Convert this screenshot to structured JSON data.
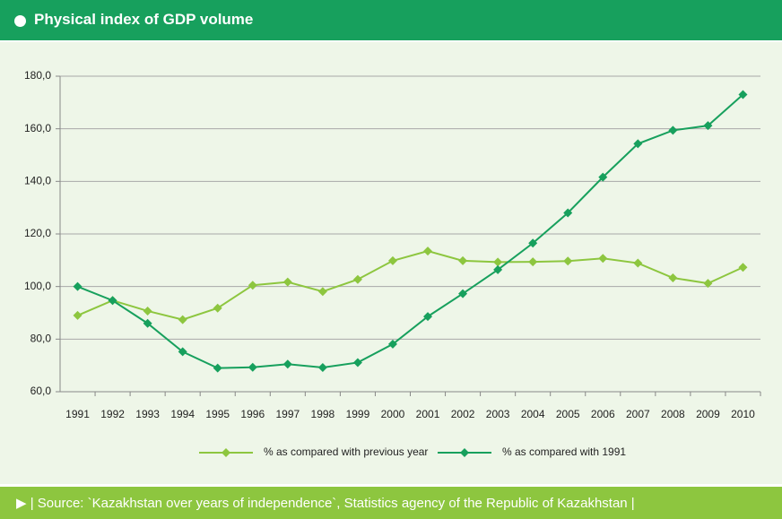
{
  "header": {
    "title": "Physical index of GDP volume"
  },
  "chart_data": {
    "type": "line",
    "categories": [
      "1991",
      "1992",
      "1993",
      "1994",
      "1995",
      "1996",
      "1997",
      "1998",
      "1999",
      "2000",
      "2001",
      "2002",
      "2003",
      "2004",
      "2005",
      "2006",
      "2007",
      "2008",
      "2009",
      "2010"
    ],
    "series": [
      {
        "name": "% as compared with previous year",
        "color": "#8dc63f",
        "values": [
          89.0,
          94.7,
          90.7,
          87.4,
          91.8,
          100.5,
          101.7,
          98.1,
          102.7,
          109.8,
          113.5,
          109.8,
          109.3,
          109.4,
          109.7,
          110.7,
          108.9,
          103.3,
          101.2,
          107.3
        ]
      },
      {
        "name": "% as compared with 1991",
        "color": "#17a05d",
        "values": [
          100.0,
          94.7,
          86.0,
          75.2,
          69.0,
          69.3,
          70.5,
          69.2,
          71.1,
          78.1,
          88.6,
          97.3,
          106.4,
          116.5,
          128.0,
          141.6,
          154.3,
          159.4,
          161.2,
          173.0
        ]
      }
    ],
    "ylim": [
      60,
      180
    ],
    "yticks": [
      {
        "value": 60,
        "label": "60,0"
      },
      {
        "value": 80,
        "label": "80,0"
      },
      {
        "value": 100,
        "label": "100,0"
      },
      {
        "value": 120,
        "label": "120,0"
      },
      {
        "value": 140,
        "label": "140,0"
      },
      {
        "value": 160,
        "label": "160,0"
      },
      {
        "value": 180,
        "label": "180,0"
      }
    ],
    "grid": true,
    "legend": "bottom"
  },
  "footer": {
    "text": "▶ | Source: `Kazakhstan over years of independence`, Statistics agency of the Republic of Kazakhstan |"
  }
}
